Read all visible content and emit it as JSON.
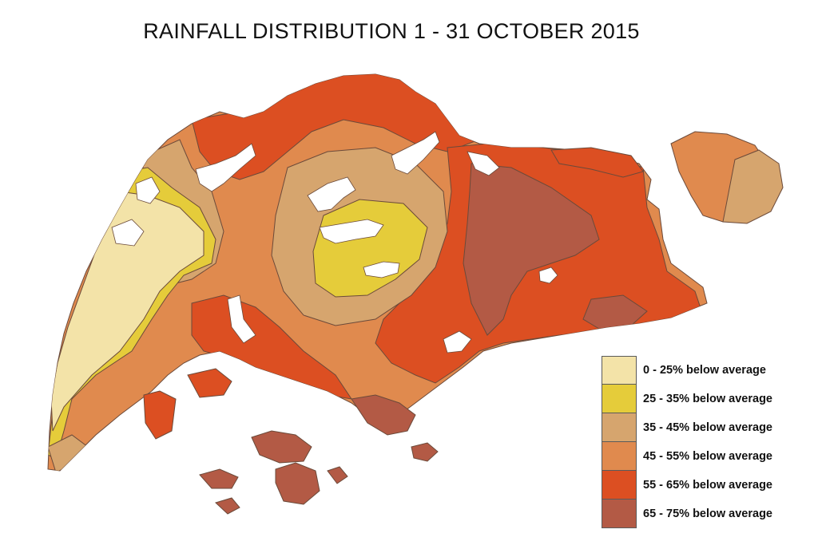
{
  "title": "RAINFALL DISTRIBUTION 1 - 31 OCTOBER 2015",
  "legend": {
    "items": [
      {
        "label": "0 - 25% below average",
        "color": "#f3e3a8"
      },
      {
        "label": "25 - 35% below average",
        "color": "#e5cc3a"
      },
      {
        "label": "35 - 45% below average",
        "color": "#d6a56e"
      },
      {
        "label": "45 - 55% below average",
        "color": "#e08a4e"
      },
      {
        "label": "55 - 65% below average",
        "color": "#dc4f22"
      },
      {
        "label": "65 - 75% below average",
        "color": "#b35a45"
      }
    ]
  },
  "colors": {
    "background": "#ffffff",
    "boundary": "#6b4a3a",
    "water": "#ffffff"
  }
}
